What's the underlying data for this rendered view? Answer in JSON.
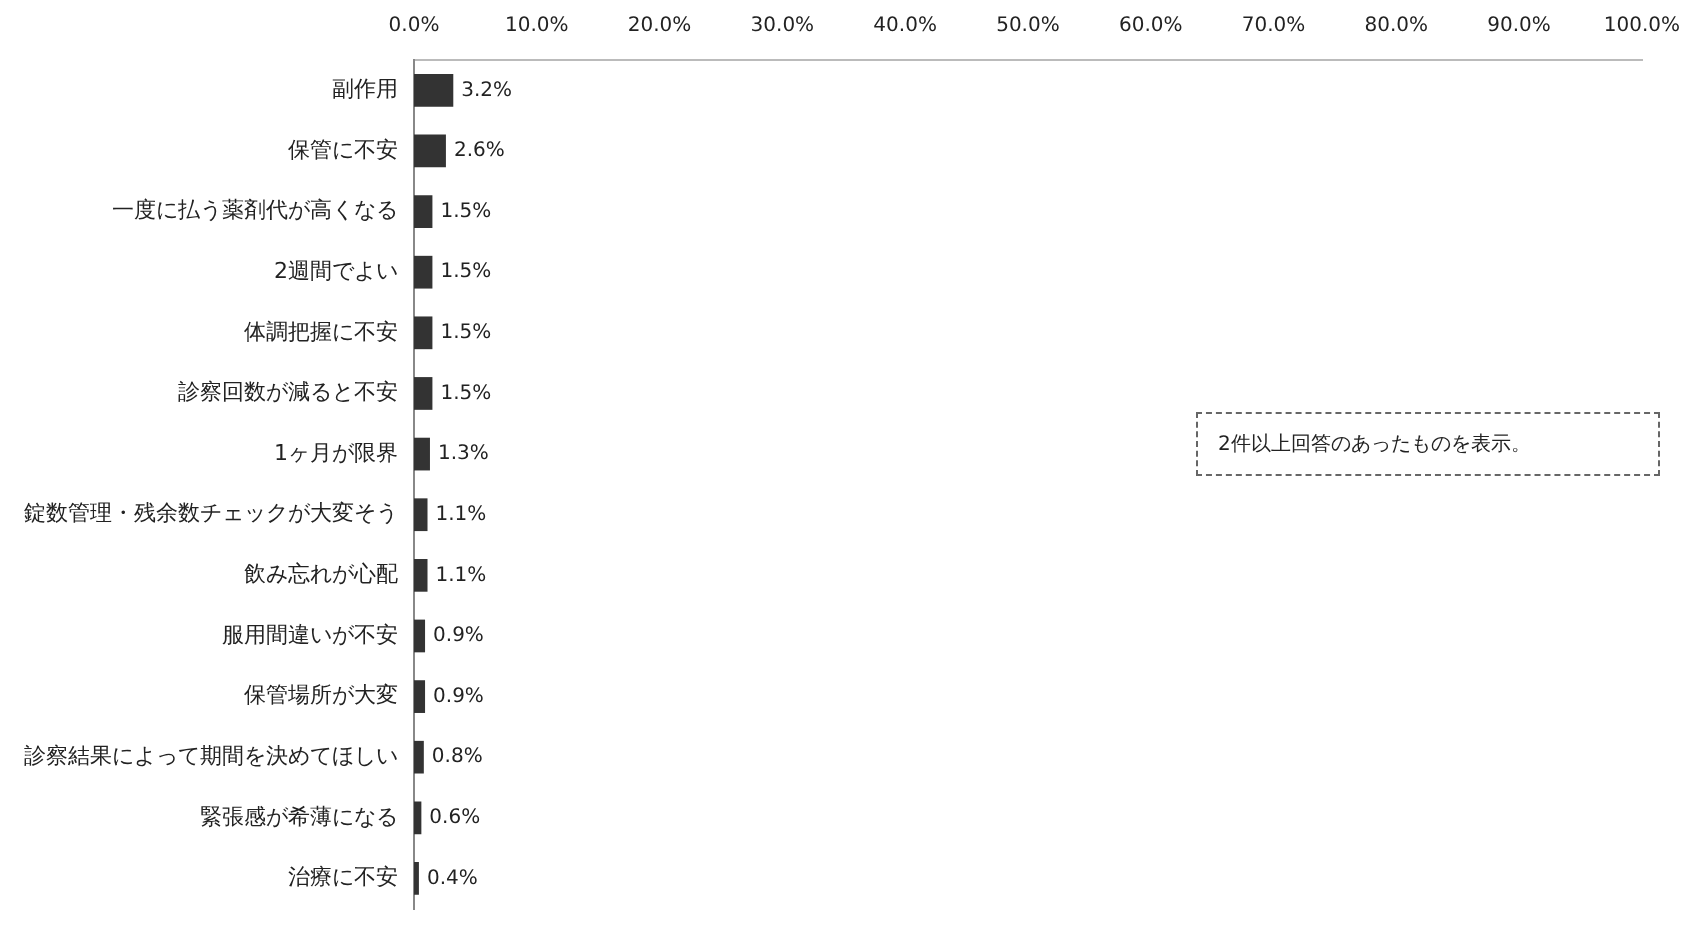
{
  "chart_data": {
    "type": "bar",
    "orientation": "horizontal",
    "categories": [
      "副作用",
      "保管に不安",
      "一度に払う薬剤代が高くなる",
      "2週間でよい",
      "体調把握に不安",
      "診察回数が減ると不安",
      "1ヶ月が限界",
      "錠数管理・残余数チェックが大変そう",
      "飲み忘れが心配",
      "服用間違いが不安",
      "保管場所が大変",
      "診察結果によって期間を決めてほしい",
      "緊張感が希薄になる",
      "治療に不安"
    ],
    "values": [
      3.2,
      2.6,
      1.5,
      1.5,
      1.5,
      1.5,
      1.3,
      1.1,
      1.1,
      0.9,
      0.9,
      0.8,
      0.6,
      0.4
    ],
    "value_labels": [
      "3.2%",
      "2.6%",
      "1.5%",
      "1.5%",
      "1.5%",
      "1.5%",
      "1.3%",
      "1.1%",
      "1.1%",
      "0.9%",
      "0.9%",
      "0.8%",
      "0.6%",
      "0.4%"
    ],
    "color": "#333333",
    "xlim": [
      0,
      100
    ],
    "xticks": [
      {
        "value": 0,
        "label": "0.0%"
      },
      {
        "value": 10,
        "label": "10.0%"
      },
      {
        "value": 20,
        "label": "20.0%"
      },
      {
        "value": 30,
        "label": "30.0%"
      },
      {
        "value": 40,
        "label": "40.0%"
      },
      {
        "value": 50,
        "label": "50.0%"
      },
      {
        "value": 60,
        "label": "60.0%"
      },
      {
        "value": 70,
        "label": "70.0%"
      },
      {
        "value": 80,
        "label": "80.0%"
      },
      {
        "value": 90,
        "label": "90.0%"
      },
      {
        "value": 100,
        "label": "100.0%"
      }
    ],
    "grid": false,
    "legend": false,
    "annotations": [
      "2件以上回答のあったものを表示。"
    ]
  }
}
